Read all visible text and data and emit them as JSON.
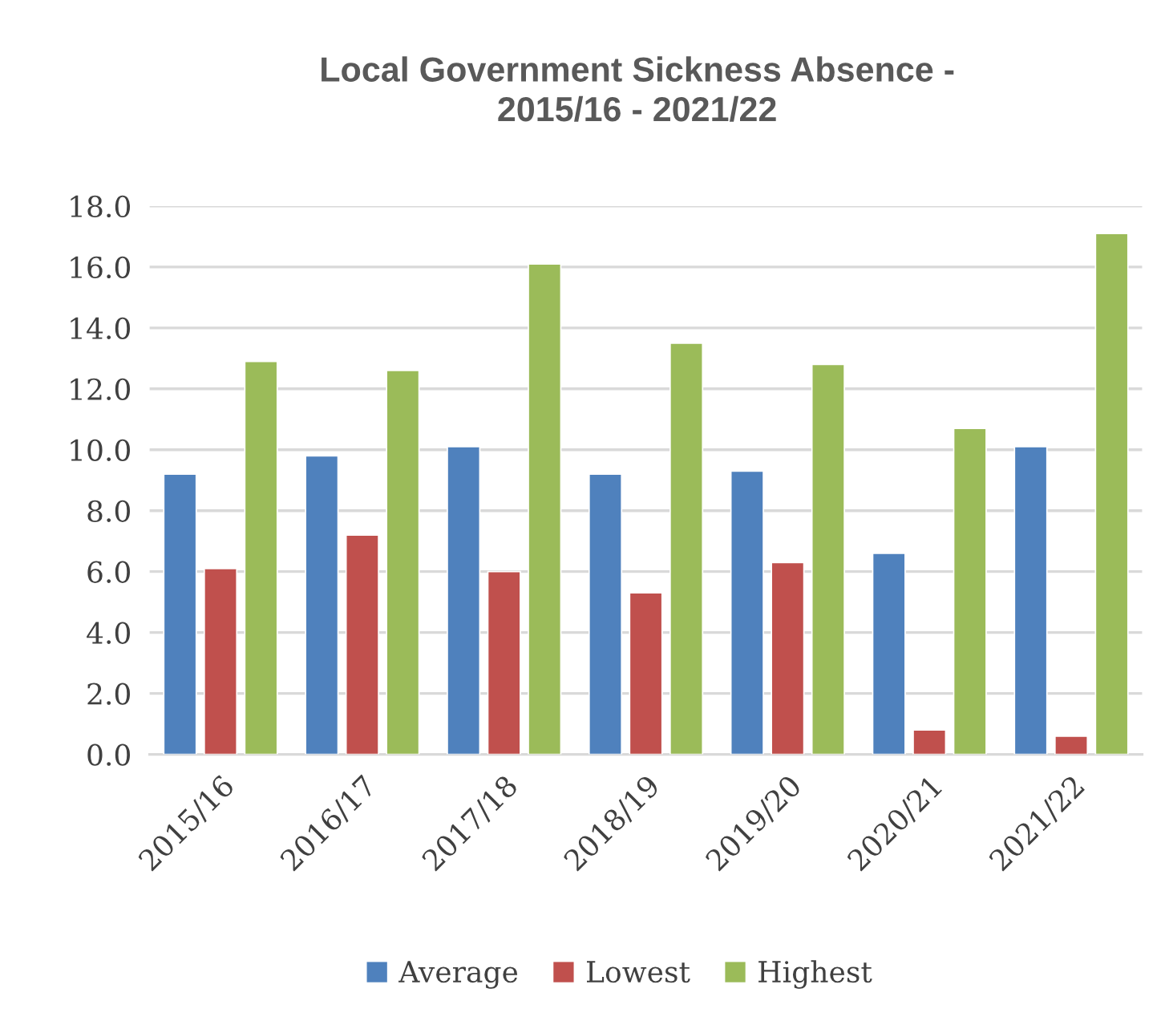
{
  "chart_data": {
    "type": "bar",
    "title": "Local Government Sickness Absence -\n2015/16 - 2021/22",
    "categories": [
      "2015/16",
      "2016/17",
      "2017/18",
      "2018/19",
      "2019/20",
      "2020/21",
      "2021/22"
    ],
    "series": [
      {
        "name": "Average",
        "color": "#4f81bd",
        "values": [
          9.2,
          9.8,
          10.1,
          9.2,
          9.3,
          6.6,
          10.1
        ]
      },
      {
        "name": "Lowest",
        "color": "#c0504d",
        "values": [
          6.1,
          7.2,
          6.0,
          5.3,
          6.3,
          0.8,
          0.6
        ]
      },
      {
        "name": "Highest",
        "color": "#9bbb59",
        "values": [
          12.9,
          12.6,
          16.1,
          13.5,
          12.8,
          10.7,
          17.1
        ]
      }
    ],
    "ylim": [
      0,
      18
    ],
    "yticks": [
      {
        "value": 0,
        "label": "0.0"
      },
      {
        "value": 2,
        "label": "2.0"
      },
      {
        "value": 4,
        "label": "4.0"
      },
      {
        "value": 6,
        "label": "6.0"
      },
      {
        "value": 8,
        "label": "8.0"
      },
      {
        "value": 10,
        "label": "10.0"
      },
      {
        "value": 12,
        "label": "12.0"
      },
      {
        "value": 14,
        "label": "14.0"
      },
      {
        "value": 16,
        "label": "16.0"
      },
      {
        "value": 18,
        "label": "18.0"
      }
    ],
    "grid": "y",
    "legend": "bottom"
  }
}
